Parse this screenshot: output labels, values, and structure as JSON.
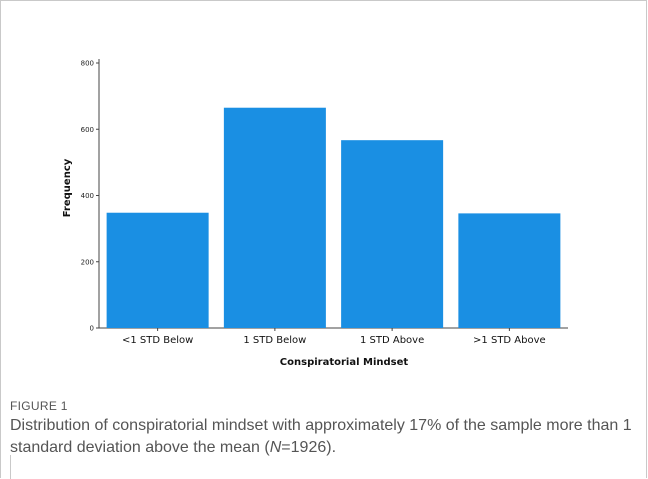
{
  "chart_data": {
    "type": "bar",
    "categories": [
      "<1 STD Below",
      "1 STD Below",
      "1 STD Above",
      ">1 STD Above"
    ],
    "values": [
      348,
      665,
      567,
      346
    ],
    "xlabel": "Conspiratorial Mindset",
    "ylabel": "Frequency",
    "ylim": [
      0,
      800
    ],
    "yticks": [
      0,
      200,
      400,
      600,
      800
    ],
    "bar_color": "#1a8fe3",
    "grid": false,
    "legend": "none"
  },
  "figure": {
    "label": "FIGURE 1",
    "caption_pre": "Distribution of conspiratorial mindset with approximately 17% of the sample more than 1 standard deviation above the mean (",
    "caption_n_symbol": "N",
    "caption_post": "=1926)."
  }
}
